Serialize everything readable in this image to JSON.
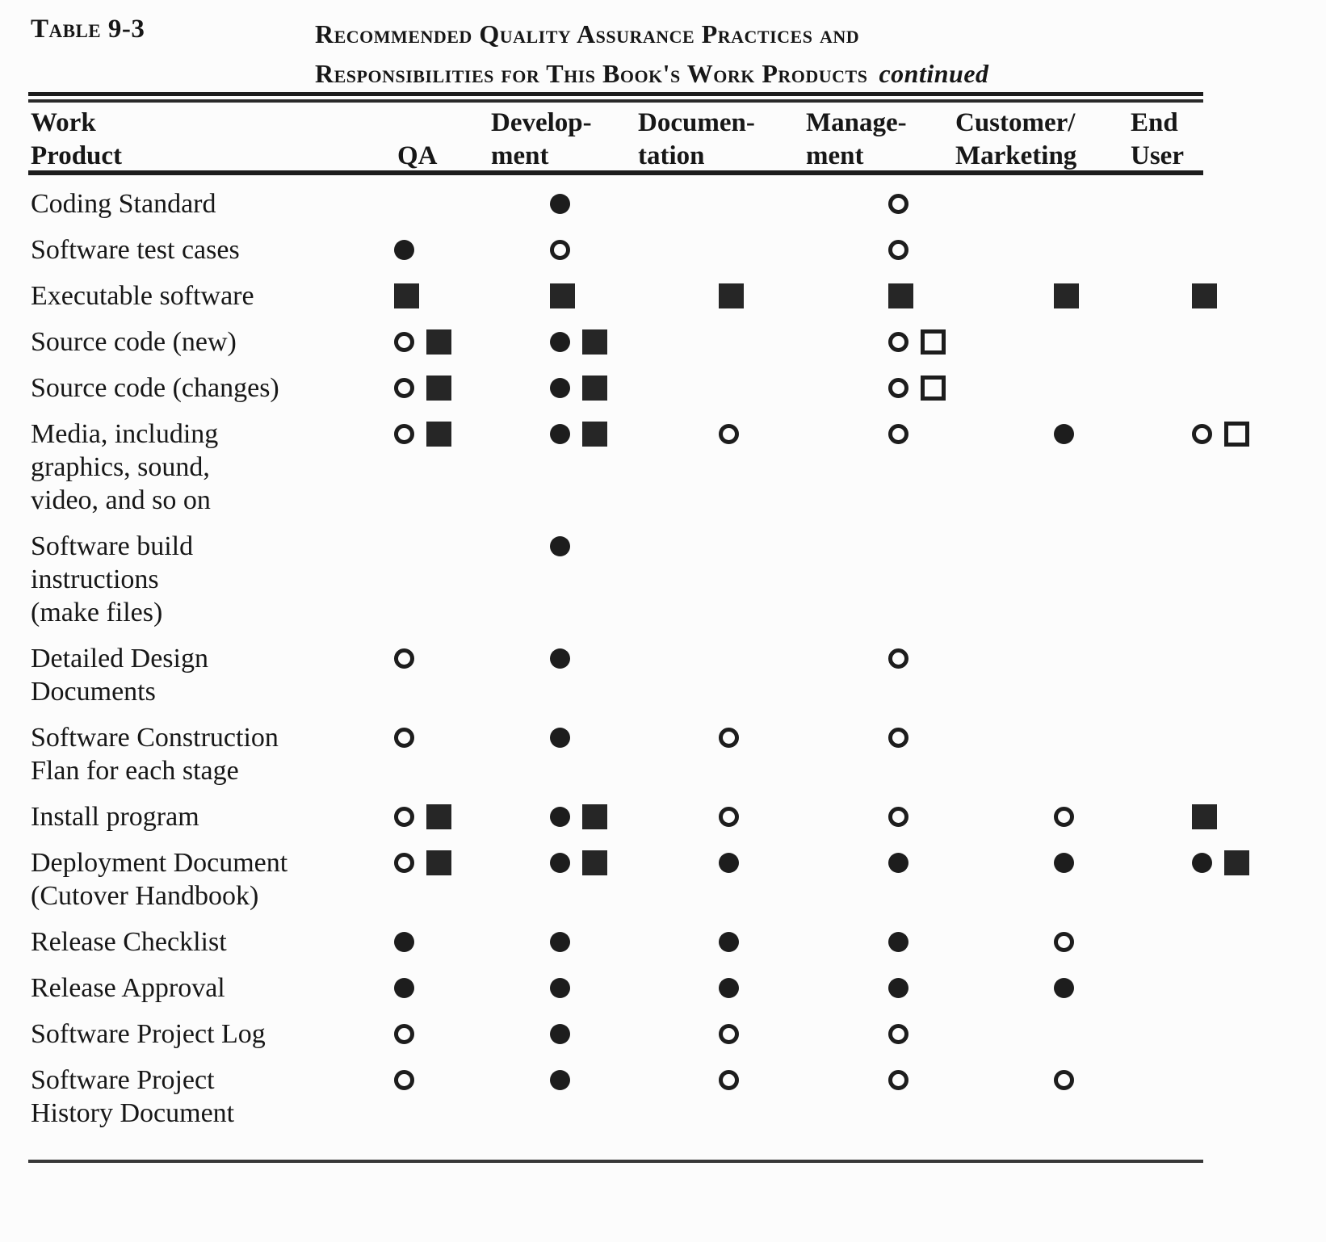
{
  "document": {
    "table_label": "Table 9-3",
    "title_line1": "Recommended Quality Assurance Practices and",
    "title_line2": "Responsibilities for This Book's Work Products",
    "continued_note": "continued",
    "ink_color": "#1d1d1d",
    "paper_color": "#fcfcfc",
    "columns": {
      "work_product": {
        "line1": "Work",
        "line2": "Product"
      },
      "qa": {
        "line1": "",
        "line2": "QA"
      },
      "development": {
        "line1": "Develop-",
        "line2": "ment"
      },
      "documentation": {
        "line1": "Documen-",
        "line2": "tation"
      },
      "management": {
        "line1": "Manage-",
        "line2": "ment"
      },
      "customer_marketing": {
        "line1": "Customer/",
        "line2": "Marketing"
      },
      "end_user": {
        "line1": "End",
        "line2": "User"
      }
    },
    "symbol_legend": [
      "filled-circle",
      "open-circle",
      "filled-square",
      "open-square"
    ],
    "rows": [
      {
        "label_lines": [
          "Coding Standard"
        ],
        "qa": [],
        "development": [
          "filled-circle"
        ],
        "documentation": [],
        "management": [
          "open-circle"
        ],
        "customer_marketing": [],
        "end_user": []
      },
      {
        "label_lines": [
          "Software test cases"
        ],
        "qa": [
          "filled-circle"
        ],
        "development": [
          "open-circle"
        ],
        "documentation": [],
        "management": [
          "open-circle"
        ],
        "customer_marketing": [],
        "end_user": []
      },
      {
        "label_lines": [
          "Executable software"
        ],
        "qa": [
          "filled-square"
        ],
        "development": [
          "filled-square"
        ],
        "documentation": [
          "filled-square"
        ],
        "management": [
          "filled-square"
        ],
        "customer_marketing": [
          "filled-square"
        ],
        "end_user": [
          "filled-square"
        ]
      },
      {
        "label_lines": [
          "Source code (new)"
        ],
        "qa": [
          "open-circle",
          "filled-square"
        ],
        "development": [
          "filled-circle",
          "filled-square"
        ],
        "documentation": [],
        "management": [
          "open-circle",
          "open-square"
        ],
        "customer_marketing": [],
        "end_user": []
      },
      {
        "label_lines": [
          "Source code (changes)"
        ],
        "qa": [
          "open-circle",
          "filled-square"
        ],
        "development": [
          "filled-circle",
          "filled-square"
        ],
        "documentation": [],
        "management": [
          "open-circle",
          "open-square"
        ],
        "customer_marketing": [],
        "end_user": []
      },
      {
        "label_lines": [
          "Media, including",
          "graphics, sound,",
          "video, and so on"
        ],
        "qa": [
          "open-circle",
          "filled-square"
        ],
        "development": [
          "filled-circle",
          "filled-square"
        ],
        "documentation": [
          "open-circle"
        ],
        "management": [
          "open-circle"
        ],
        "customer_marketing": [
          "filled-circle"
        ],
        "end_user": [
          "open-circle",
          "open-square"
        ]
      },
      {
        "label_lines": [
          "Software  build",
          "instructions",
          "(make files)"
        ],
        "qa": [],
        "development": [
          "filled-circle"
        ],
        "documentation": [],
        "management": [],
        "customer_marketing": [],
        "end_user": []
      },
      {
        "label_lines": [
          "Detailed Design",
          "Documents"
        ],
        "qa": [
          "open-circle"
        ],
        "development": [
          "filled-circle"
        ],
        "documentation": [],
        "management": [
          "open-circle"
        ],
        "customer_marketing": [],
        "end_user": []
      },
      {
        "label_lines": [
          "Software  Construction",
          "Flan for each stage"
        ],
        "qa": [
          "open-circle"
        ],
        "development": [
          "filled-circle"
        ],
        "documentation": [
          "open-circle"
        ],
        "management": [
          "open-circle"
        ],
        "customer_marketing": [],
        "end_user": []
      },
      {
        "label_lines": [
          "Install program"
        ],
        "qa": [
          "open-circle",
          "filled-square"
        ],
        "development": [
          "filled-circle",
          "filled-square"
        ],
        "documentation": [
          "open-circle"
        ],
        "management": [
          "open-circle"
        ],
        "customer_marketing": [
          "open-circle"
        ],
        "end_user": [
          "filled-square"
        ]
      },
      {
        "label_lines": [
          "Deployment Document",
          "(Cutover  Handbook)"
        ],
        "qa": [
          "open-circle",
          "filled-square"
        ],
        "development": [
          "filled-circle",
          "filled-square"
        ],
        "documentation": [
          "filled-circle"
        ],
        "management": [
          "filled-circle"
        ],
        "customer_marketing": [
          "filled-circle"
        ],
        "end_user": [
          "filled-circle",
          "filled-square"
        ]
      },
      {
        "label_lines": [
          "Release  Checklist"
        ],
        "qa": [
          "filled-circle"
        ],
        "development": [
          "filled-circle"
        ],
        "documentation": [
          "filled-circle"
        ],
        "management": [
          "filled-circle"
        ],
        "customer_marketing": [
          "open-circle"
        ],
        "end_user": []
      },
      {
        "label_lines": [
          "Release  Approval"
        ],
        "qa": [
          "filled-circle"
        ],
        "development": [
          "filled-circle"
        ],
        "documentation": [
          "filled-circle"
        ],
        "management": [
          "filled-circle"
        ],
        "customer_marketing": [
          "filled-circle"
        ],
        "end_user": []
      },
      {
        "label_lines": [
          "Software Project Log"
        ],
        "qa": [
          "open-circle"
        ],
        "development": [
          "filled-circle"
        ],
        "documentation": [
          "open-circle"
        ],
        "management": [
          "open-circle"
        ],
        "customer_marketing": [],
        "end_user": []
      },
      {
        "label_lines": [
          "Software Project",
          "History Document"
        ],
        "qa": [
          "open-circle"
        ],
        "development": [
          "filled-circle"
        ],
        "documentation": [
          "open-circle"
        ],
        "management": [
          "open-circle"
        ],
        "customer_marketing": [
          "open-circle"
        ],
        "end_user": []
      }
    ]
  }
}
